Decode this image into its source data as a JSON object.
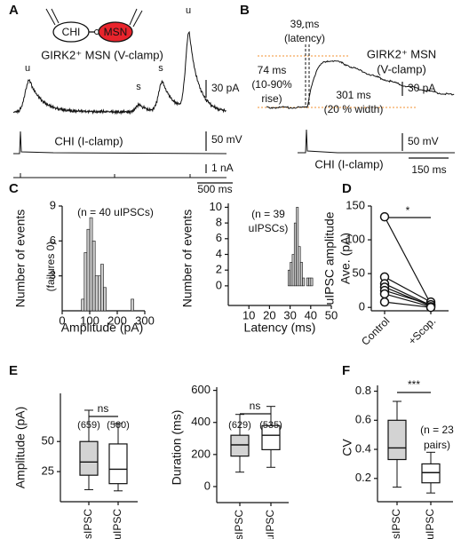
{
  "panel_labels": [
    "A",
    "B",
    "C",
    "D",
    "E",
    "F"
  ],
  "panel_A": {
    "schematic": [
      "CHI",
      "MSN"
    ],
    "trace_label_top": "GIRK2⁺ MSN (V-clamp)",
    "event_labels": [
      "u",
      "s",
      "s",
      "u"
    ],
    "trace_label_bottom": "CHI (I-clamp)",
    "scale_bars": [
      "30 pA",
      "50 mV",
      "1 nA",
      "500 ms"
    ]
  },
  "panel_B": {
    "annotations": [
      "39 ms",
      "(latency)",
      "74 ms",
      "(10-90%",
      "rise)",
      "301 ms",
      "(20 % width)"
    ],
    "trace_label_top": [
      "GIRK2⁺ MSN",
      "(V-clamp)"
    ],
    "trace_label_bottom": "CHI (I-clamp)",
    "scale_bars": [
      "30 pA",
      "50 mV",
      "150 ms"
    ]
  },
  "chart_data": [
    {
      "type": "histogram",
      "ylabel": "Number of events",
      "xlabel": "Amplitude (pA)",
      "annotations": [
        "(n = 40 uIPSCs)",
        "(failures 0)"
      ],
      "bins": [
        70,
        80,
        90,
        100,
        110,
        120,
        130,
        140,
        150,
        160,
        170,
        180,
        190,
        200,
        210,
        220,
        230,
        240,
        250,
        260
      ],
      "counts": [
        1,
        5,
        7,
        8,
        6,
        3,
        3,
        4,
        2,
        0,
        0,
        0,
        0,
        0,
        0,
        0,
        0,
        0,
        1
      ],
      "color": "#cccccc",
      "xlim": [
        0,
        300
      ],
      "xticks": [
        0,
        100,
        200,
        300
      ],
      "ylim": [
        0,
        9
      ],
      "yticks": [
        3,
        6,
        9
      ]
    },
    {
      "type": "histogram",
      "ylabel": "Number of events",
      "xlabel": "Latency (ms)",
      "annotations": [
        "(n = 39",
        "uIPSCs)"
      ],
      "bins": [
        29,
        30,
        31,
        32,
        33,
        34,
        35,
        36,
        37,
        38,
        39,
        40,
        41
      ],
      "counts": [
        2,
        3,
        4,
        8,
        10,
        5,
        3,
        1,
        0,
        1,
        1,
        1
      ],
      "color": "#cccccc",
      "xlim": [
        0,
        50
      ],
      "xticks": [
        10,
        20,
        30,
        40,
        50
      ],
      "ylim": [
        -2.5,
        10.5
      ],
      "yticks": [
        0,
        2,
        4,
        6,
        8,
        10
      ]
    },
    {
      "type": "paired",
      "ylabel": [
        "uIPSC amplitude",
        "Ave. (pA)"
      ],
      "categories": [
        "Control",
        "+Scop."
      ],
      "annotations": [
        "*"
      ],
      "before": [
        134,
        45,
        35,
        30,
        25,
        20,
        8
      ],
      "after": [
        5,
        8,
        3,
        2,
        4,
        1,
        0
      ],
      "ylim": [
        -5,
        150
      ],
      "yticks": [
        0,
        50,
        100,
        150
      ]
    },
    {
      "type": "box",
      "ylabel": "Amplitude (pA)",
      "categories": [
        "sIPSC",
        "uIPSC"
      ],
      "n_labels": [
        "(659)",
        "(560)"
      ],
      "annotations": [
        "ns"
      ],
      "boxes": [
        {
          "whislo": 10,
          "q1": 22,
          "med": 33,
          "q3": 50,
          "whishi": 76
        },
        {
          "whislo": 9,
          "q1": 15,
          "med": 27,
          "q3": 48,
          "whishi": 65
        }
      ],
      "colors": [
        "#d3d3d3",
        "#ffffff"
      ],
      "ylim": [
        0,
        90
      ],
      "yticks": [
        25,
        50
      ]
    },
    {
      "type": "box",
      "ylabel": "Duration (ms)",
      "categories": [
        "sIPSC",
        "uIPSC"
      ],
      "n_labels": [
        "(629)",
        "(535)"
      ],
      "annotations": [
        "ns"
      ],
      "boxes": [
        {
          "whislo": 90,
          "q1": 190,
          "med": 260,
          "q3": 320,
          "whishi": 450
        },
        {
          "whislo": 120,
          "q1": 230,
          "med": 320,
          "q3": 380,
          "whishi": 500
        }
      ],
      "colors": [
        "#d3d3d3",
        "#ffffff"
      ],
      "ylim": [
        -100,
        620
      ],
      "yticks": [
        0,
        200,
        400,
        600
      ]
    },
    {
      "type": "box",
      "ylabel": "CV",
      "categories": [
        "sIPSC",
        "uIPSC"
      ],
      "annotations": [
        "***",
        "(n = 23",
        "pairs)"
      ],
      "boxes": [
        {
          "whislo": 0.14,
          "q1": 0.33,
          "med": 0.41,
          "q3": 0.6,
          "whishi": 0.73
        },
        {
          "whislo": 0.1,
          "q1": 0.17,
          "med": 0.24,
          "q3": 0.3,
          "whishi": 0.38
        }
      ],
      "colors": [
        "#d3d3d3",
        "#ffffff"
      ],
      "ylim": [
        0.04,
        0.84
      ],
      "yticks": [
        0.2,
        0.4,
        0.6,
        0.8
      ]
    }
  ]
}
